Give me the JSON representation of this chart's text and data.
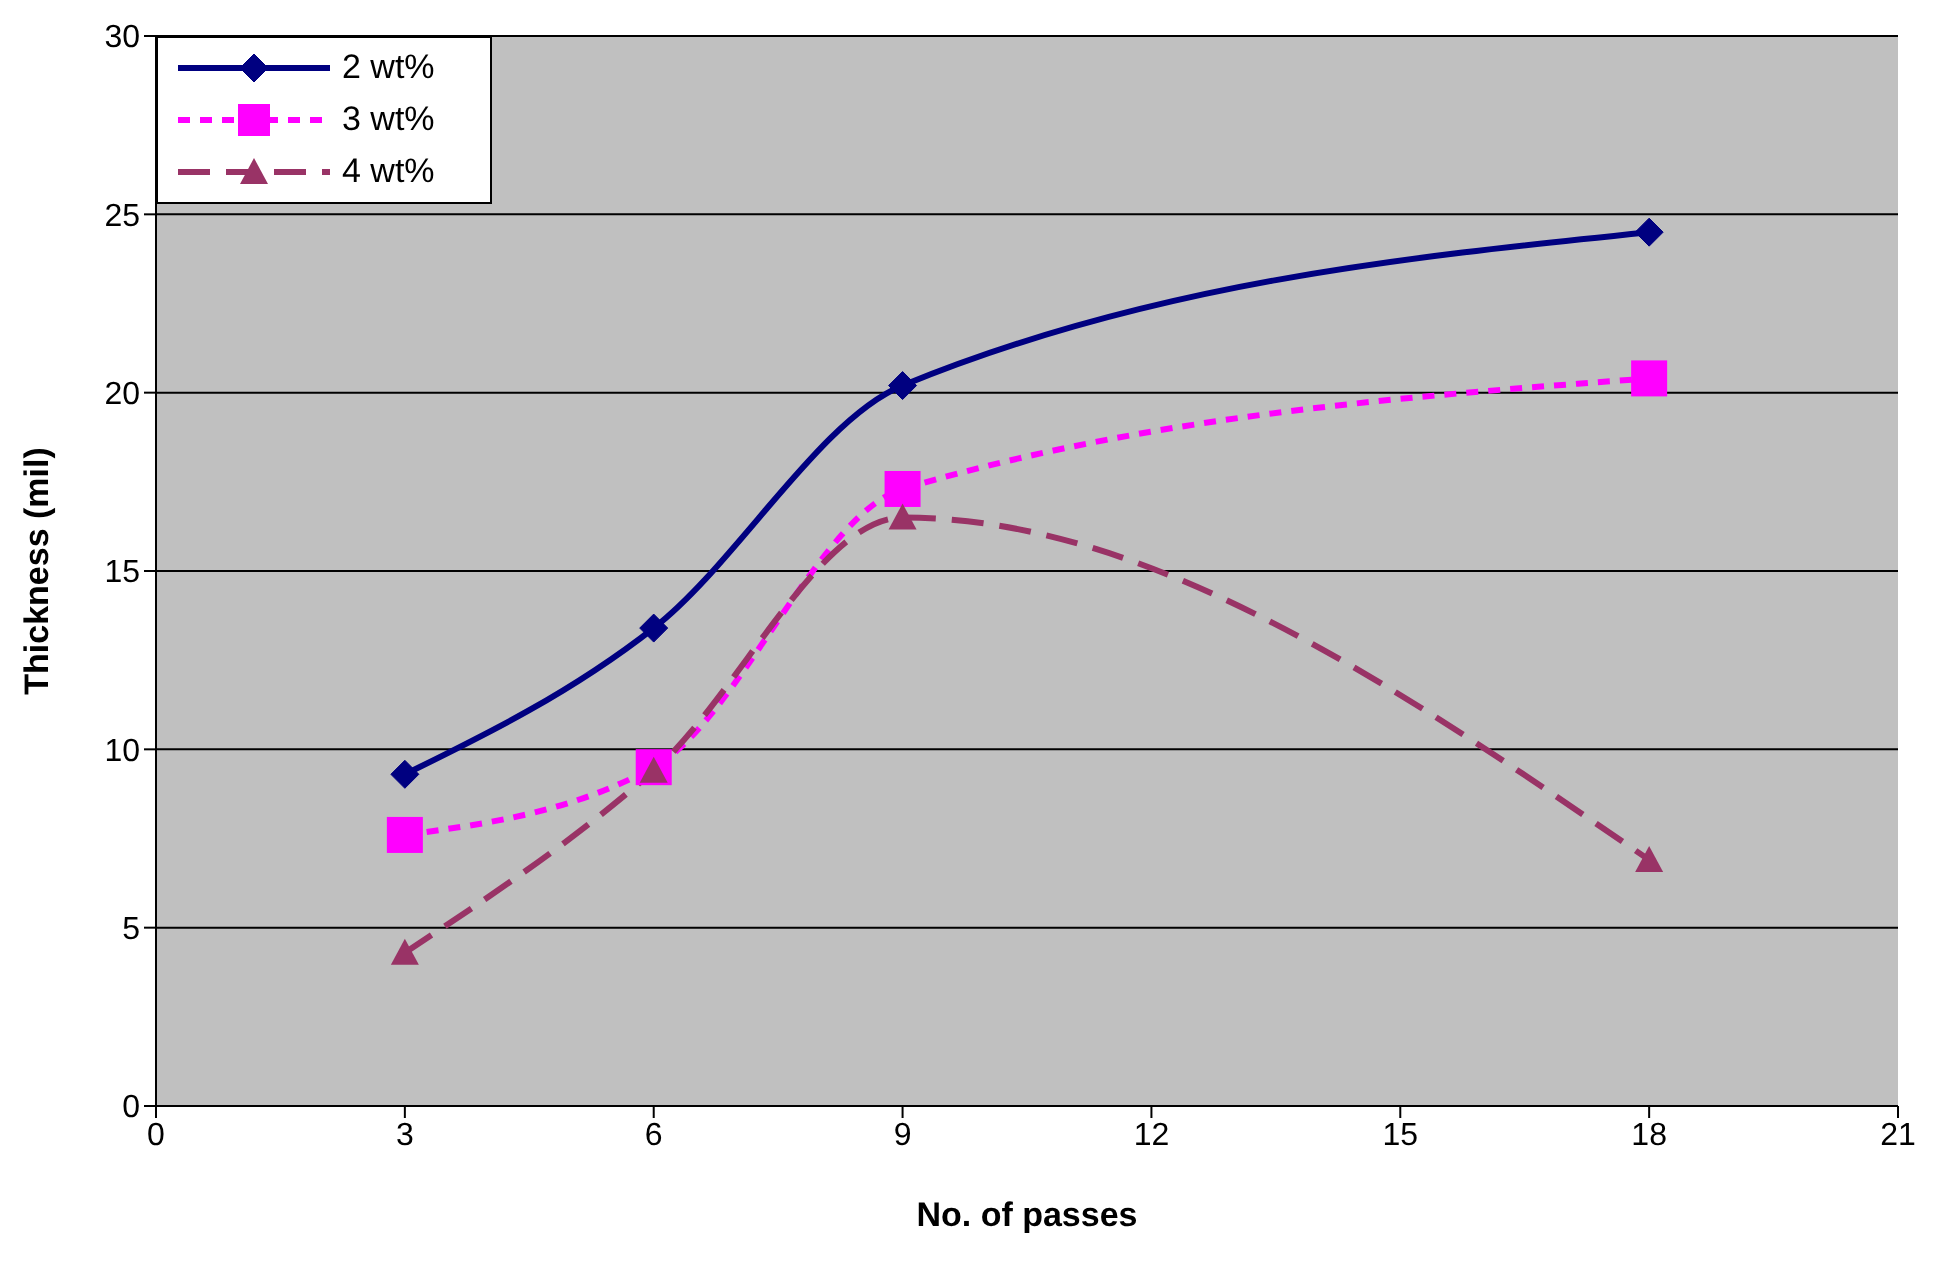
{
  "chart_data": {
    "type": "line",
    "xlabel": "No. of passes",
    "ylabel": "Thickness (mil)",
    "x": [
      3,
      6,
      9,
      18
    ],
    "series": [
      {
        "name": "2 wt%",
        "color": "#000080",
        "values": [
          9.3,
          13.4,
          20.2,
          24.5
        ],
        "marker": "diamond",
        "line_style": "solid"
      },
      {
        "name": "3 wt%",
        "color": "#ff00ff",
        "values": [
          7.6,
          9.5,
          17.3,
          20.4
        ],
        "marker": "square",
        "line_style": "dotted"
      },
      {
        "name": "4 wt%",
        "color": "#993366",
        "values": [
          4.3,
          9.4,
          16.5,
          6.9
        ],
        "marker": "triangle",
        "line_style": "dashed"
      }
    ],
    "xlim": [
      0,
      21
    ],
    "xticks": [
      0,
      3,
      6,
      9,
      12,
      15,
      18,
      21
    ],
    "ylim": [
      0,
      30
    ],
    "yticks": [
      0,
      5,
      10,
      15,
      20,
      25,
      30
    ],
    "grid": "y",
    "legend": "top left"
  }
}
